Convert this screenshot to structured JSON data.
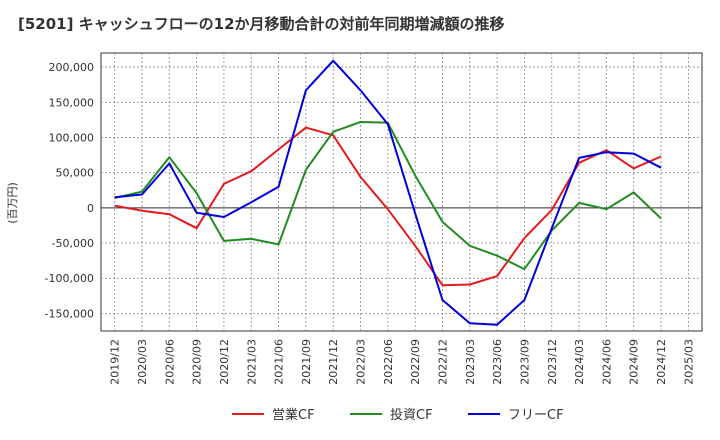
{
  "chart_data": {
    "type": "line",
    "title": "[5201]  キャッシュフローの12か月移動合計の対前年同期増減額の推移",
    "ylabel": "(百万円)",
    "xlabel": "",
    "ylim": [
      -175000,
      220000
    ],
    "y_ticks": [
      200000,
      150000,
      100000,
      50000,
      0,
      -50000,
      -100000,
      -150000
    ],
    "y_tick_labels": [
      "200,000",
      "150,000",
      "100,000",
      "50,000",
      "0",
      "-50,000",
      "-100,000",
      "-150,000"
    ],
    "x_tick_labels": [
      "2019/12",
      "2020/03",
      "2020/06",
      "2020/09",
      "2020/12",
      "2021/03",
      "2021/06",
      "2021/09",
      "2021/12",
      "2022/03",
      "2022/06",
      "2022/09",
      "2022/12",
      "2023/03",
      "2023/06",
      "2023/09",
      "2023/12",
      "2024/03",
      "2024/06",
      "2024/09",
      "2024/12",
      "2025/03"
    ],
    "categories": [
      "2019/12",
      "2020/03",
      "2020/06",
      "2020/09",
      "2020/12",
      "2021/03",
      "2021/06",
      "2021/09",
      "2021/12",
      "2022/03",
      "2022/06",
      "2022/09",
      "2022/12",
      "2023/03",
      "2023/06",
      "2023/09",
      "2023/12",
      "2024/03",
      "2024/06",
      "2024/09",
      "2024/12"
    ],
    "grid": true,
    "legend_position": "bottom",
    "series": [
      {
        "name": "営業CF",
        "color": "#e41a1c",
        "values": [
          3000,
          -4000,
          -9000,
          -29000,
          34000,
          52000,
          83000,
          114000,
          103000,
          44000,
          -2000,
          -54000,
          -110000,
          -109000,
          -97000,
          -43000,
          -3000,
          64000,
          82000,
          56000,
          73000
        ]
      },
      {
        "name": "投資CF",
        "color": "#228b22",
        "values": [
          14000,
          23000,
          72000,
          21000,
          -47000,
          -44000,
          -52000,
          54000,
          108000,
          122000,
          121000,
          46000,
          -20000,
          -54000,
          -68000,
          -87000,
          -32000,
          7000,
          -2000,
          22000,
          -15000
        ]
      },
      {
        "name": "フリーCF",
        "color": "#0000dd",
        "values": [
          15000,
          19000,
          63000,
          -7000,
          -13000,
          8000,
          30000,
          167000,
          209000,
          167000,
          119000,
          -8000,
          -131000,
          -164000,
          -166000,
          -131000,
          -29000,
          71000,
          79000,
          77000,
          57000
        ]
      }
    ]
  }
}
